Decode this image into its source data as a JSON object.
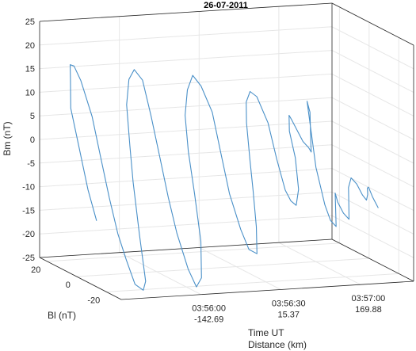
{
  "chart_data": {
    "type": "line",
    "projection": "3d",
    "title": "26-07-2011",
    "series_color": "#4a90c8",
    "grid": true,
    "axes": {
      "time": {
        "label_line1": "Time UT",
        "label_line2": "Distance (km)",
        "ticks": [
          {
            "time": "03:56:00",
            "distance": "-142.69"
          },
          {
            "time": "03:56:30",
            "distance": "15.37"
          },
          {
            "time": "03:57:00",
            "distance": "169.88"
          }
        ]
      },
      "bl": {
        "label": "Bl (nT)",
        "ticks": [
          "20",
          "0",
          "-20"
        ],
        "range": [
          -30,
          25
        ]
      },
      "bm": {
        "label": "Bm (nT)",
        "ticks": [
          "25",
          "20",
          "15",
          "10",
          "5",
          "0",
          "-5",
          "-10",
          "-15",
          "-20",
          "-25"
        ],
        "range": [
          -25,
          25
        ]
      }
    },
    "series": [
      {
        "description": "Hodogram loops of Bl/Bm versus time; points as [t_seconds_after_03:55:30, Bl_nT, Bm_nT]",
        "points": [
          [
            3,
            -8,
            -12
          ],
          [
            2,
            -4,
            -6
          ],
          [
            1,
            0,
            2
          ],
          [
            0,
            4,
            10
          ],
          [
            1,
            6,
            16
          ],
          [
            2,
            8,
            18.5
          ],
          [
            4,
            9,
            18
          ],
          [
            6,
            8,
            15
          ],
          [
            8,
            4,
            8
          ],
          [
            9,
            0,
            0
          ],
          [
            10,
            -4,
            -8
          ],
          [
            11,
            -8,
            -15
          ],
          [
            12,
            -12,
            -20
          ],
          [
            13,
            -16,
            -24.5
          ],
          [
            15,
            -18,
            -25.5
          ],
          [
            17,
            -16,
            -24
          ],
          [
            18,
            -10,
            -15
          ],
          [
            19,
            -4,
            -5
          ],
          [
            20,
            0,
            2
          ],
          [
            21,
            4,
            10
          ],
          [
            23,
            6,
            15
          ],
          [
            25,
            6,
            17
          ],
          [
            27,
            4,
            15
          ],
          [
            28,
            0,
            8
          ],
          [
            29,
            -4,
            0
          ],
          [
            30,
            -8,
            -8
          ],
          [
            31,
            -12,
            -15
          ],
          [
            33,
            -16,
            -22
          ],
          [
            35,
            -18,
            -25.5
          ],
          [
            38,
            -16,
            -24
          ],
          [
            40,
            -12,
            -17
          ],
          [
            41,
            -6,
            -8
          ],
          [
            42,
            0,
            0
          ],
          [
            43,
            4,
            7
          ],
          [
            45,
            6,
            12
          ],
          [
            47,
            6,
            15
          ],
          [
            49,
            4,
            13
          ],
          [
            51,
            0,
            8
          ],
          [
            52,
            -4,
            0
          ],
          [
            53,
            -8,
            -8
          ],
          [
            55,
            -12,
            -15
          ],
          [
            57,
            -14,
            -19
          ],
          [
            60,
            -14,
            -20
          ],
          [
            62,
            -10,
            -15
          ],
          [
            63,
            -6,
            -8
          ],
          [
            64,
            -2,
            -2
          ],
          [
            65,
            2,
            5
          ],
          [
            66,
            4,
            9
          ],
          [
            68,
            5,
            11
          ],
          [
            70,
            4,
            10
          ],
          [
            72,
            0,
            5
          ],
          [
            73,
            -4,
            -2
          ],
          [
            74,
            -8,
            -8
          ],
          [
            75,
            -10,
            -10
          ],
          [
            77,
            -10,
            -11
          ],
          [
            79,
            -8,
            -8
          ],
          [
            80,
            -4,
            -2
          ],
          [
            80,
            0,
            3
          ],
          [
            81,
            2,
            6
          ],
          [
            82,
            2,
            5
          ],
          [
            83,
            0,
            3
          ],
          [
            84,
            -2,
            1
          ],
          [
            85,
            -4,
            0
          ],
          [
            86,
            -4,
            -1
          ],
          [
            87,
            -2,
            0
          ],
          [
            88,
            0,
            2
          ],
          [
            89,
            2,
            4
          ],
          [
            90,
            4,
            6
          ],
          [
            90,
            6,
            8
          ],
          [
            90,
            0,
            -5
          ],
          [
            90,
            -6,
            -12
          ],
          [
            91,
            -8,
            -15
          ],
          [
            92,
            -10,
            -16
          ],
          [
            93,
            -8,
            -14
          ],
          [
            94,
            -6,
            -12
          ],
          [
            95,
            -4,
            -10
          ],
          [
            96,
            -4,
            -12
          ],
          [
            97,
            -6,
            -14
          ],
          [
            98,
            -8,
            -15
          ],
          [
            99,
            -6,
            -12
          ],
          [
            100,
            -4,
            -9
          ],
          [
            101,
            -4,
            -7
          ],
          [
            102,
            -6,
            -8
          ],
          [
            103,
            -8,
            -10
          ],
          [
            104,
            -9,
            -11
          ],
          [
            105,
            -8,
            -10
          ],
          [
            106,
            -6,
            -9
          ],
          [
            107,
            -5,
            -9
          ],
          [
            108,
            -6,
            -11
          ],
          [
            109,
            -8,
            -13
          ]
        ]
      }
    ]
  }
}
